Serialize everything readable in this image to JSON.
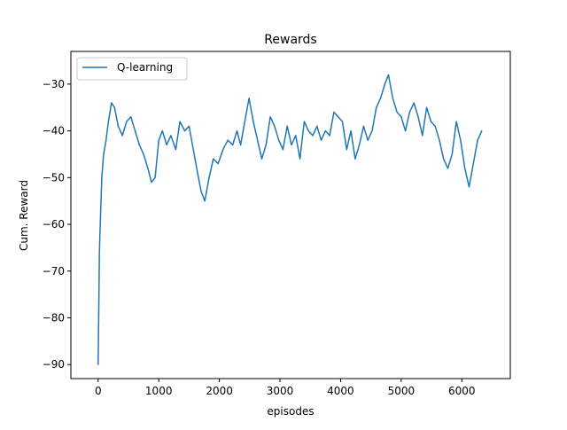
{
  "chart_data": {
    "type": "line",
    "title": "Rewards",
    "xlabel": "episodes",
    "ylabel": "Cum. Reward",
    "xlim": [
      -450,
      6800
    ],
    "ylim": [
      -93,
      -23
    ],
    "xticks": [
      0,
      1000,
      2000,
      3000,
      4000,
      5000,
      6000
    ],
    "xtick_labels": [
      "0",
      "1000",
      "2000",
      "3000",
      "4000",
      "5000",
      "6000"
    ],
    "yticks": [
      -90,
      -80,
      -70,
      -60,
      -50,
      -40,
      -30
    ],
    "ytick_labels": [
      "−90",
      "−80",
      "−70",
      "−60",
      "−50",
      "−40",
      "−30"
    ],
    "grid": false,
    "legend_position": "upper-left",
    "color": "#1f77b4",
    "series": [
      {
        "name": "Q-learning",
        "color": "#1f77b4",
        "x": [
          0,
          20,
          40,
          60,
          90,
          130,
          170,
          220,
          270,
          330,
          400,
          470,
          540,
          610,
          680,
          750,
          820,
          880,
          940,
          1000,
          1060,
          1130,
          1200,
          1280,
          1350,
          1430,
          1500,
          1570,
          1640,
          1700,
          1760,
          1830,
          1900,
          1980,
          2060,
          2140,
          2220,
          2290,
          2350,
          2420,
          2490,
          2560,
          2630,
          2700,
          2770,
          2840,
          2910,
          2980,
          3050,
          3120,
          3190,
          3260,
          3330,
          3400,
          3470,
          3540,
          3610,
          3680,
          3750,
          3820,
          3890,
          3960,
          4030,
          4100,
          4170,
          4240,
          4310,
          4380,
          4450,
          4520,
          4590,
          4660,
          4730,
          4790,
          4860,
          4930,
          5000,
          5070,
          5140,
          5210,
          5280,
          5350,
          5420,
          5490,
          5560,
          5630,
          5700,
          5770,
          5840,
          5910,
          5980,
          6050,
          6120,
          6190,
          6260,
          6330
        ],
        "values": [
          -90,
          -66,
          -58,
          -50,
          -45,
          -42,
          -38,
          -34,
          -35,
          -39,
          -41,
          -38,
          -37,
          -40,
          -43,
          -45,
          -48,
          -51,
          -50,
          -42,
          -40,
          -43,
          -41,
          -44,
          -38,
          -40,
          -39,
          -44,
          -49,
          -53,
          -55,
          -50,
          -46,
          -47,
          -44,
          -42,
          -43,
          -40,
          -43,
          -38,
          -33,
          -38,
          -42,
          -46,
          -43,
          -37,
          -39,
          -42,
          -44,
          -39,
          -43,
          -41,
          -46,
          -38,
          -40,
          -41,
          -39,
          -42,
          -40,
          -41,
          -36,
          -37,
          -38,
          -44,
          -40,
          -46,
          -43,
          -39,
          -42,
          -40,
          -35,
          -33,
          -30,
          -28,
          -33,
          -36,
          -37,
          -40,
          -36,
          -34,
          -37,
          -41,
          -35,
          -38,
          -39,
          -42,
          -46,
          -48,
          -45,
          -38,
          -42,
          -48,
          -52,
          -47,
          -42,
          -40
        ]
      }
    ]
  }
}
